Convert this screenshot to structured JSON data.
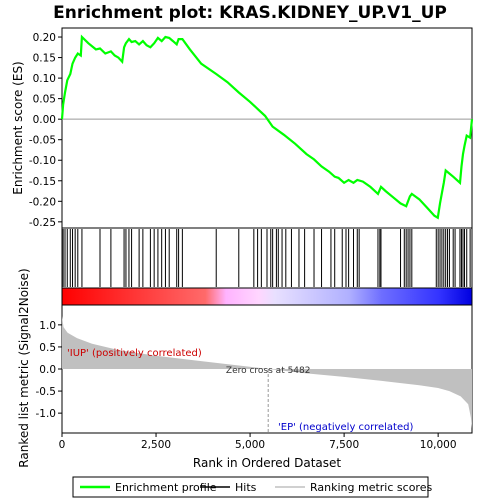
{
  "chart_data": {
    "type": "line",
    "title": "Enrichment plot: KRAS.KIDNEY_UP.V1_UP",
    "xlabel": "Rank in Ordered Dataset",
    "x_ticks": [
      0,
      2500,
      5000,
      7500,
      10000
    ],
    "x_tick_labels": [
      "0",
      "2,500",
      "5,000",
      "7,500",
      "10,000"
    ],
    "xlim": [
      0,
      10900
    ],
    "es_panel": {
      "ylabel": "Enrichment score (ES)",
      "ylim": [
        -0.265,
        0.222
      ],
      "y_ticks": [
        0.2,
        0.15,
        0.1,
        0.05,
        0.0,
        -0.05,
        -0.1,
        -0.15,
        -0.2,
        -0.25
      ],
      "y_tick_labels": [
        "0.20",
        "0.15",
        "0.10",
        "0.05",
        "0.00",
        "-0.05",
        "-0.10",
        "-0.15",
        "-0.20",
        "-0.25"
      ],
      "series": {
        "name": "Enrichment profile",
        "color": "#00ff00",
        "points": [
          [
            0,
            0.0
          ],
          [
            30,
            0.035
          ],
          [
            80,
            0.065
          ],
          [
            140,
            0.095
          ],
          [
            220,
            0.11
          ],
          [
            280,
            0.135
          ],
          [
            350,
            0.15
          ],
          [
            420,
            0.16
          ],
          [
            500,
            0.155
          ],
          [
            530,
            0.2
          ],
          [
            700,
            0.185
          ],
          [
            900,
            0.17
          ],
          [
            1010,
            0.172
          ],
          [
            1150,
            0.16
          ],
          [
            1300,
            0.165
          ],
          [
            1400,
            0.155
          ],
          [
            1500,
            0.15
          ],
          [
            1600,
            0.14
          ],
          [
            1650,
            0.175
          ],
          [
            1700,
            0.185
          ],
          [
            1780,
            0.195
          ],
          [
            1850,
            0.188
          ],
          [
            1950,
            0.19
          ],
          [
            2050,
            0.182
          ],
          [
            2150,
            0.19
          ],
          [
            2250,
            0.18
          ],
          [
            2350,
            0.175
          ],
          [
            2450,
            0.185
          ],
          [
            2550,
            0.198
          ],
          [
            2650,
            0.19
          ],
          [
            2750,
            0.2
          ],
          [
            2850,
            0.198
          ],
          [
            2950,
            0.19
          ],
          [
            3050,
            0.182
          ],
          [
            3100,
            0.195
          ],
          [
            3200,
            0.195
          ],
          [
            3400,
            0.17
          ],
          [
            3700,
            0.135
          ],
          [
            4100,
            0.11
          ],
          [
            4400,
            0.09
          ],
          [
            4700,
            0.065
          ],
          [
            5000,
            0.042
          ],
          [
            5200,
            0.025
          ],
          [
            5400,
            0.008
          ],
          [
            5600,
            -0.018
          ],
          [
            5900,
            -0.038
          ],
          [
            6200,
            -0.06
          ],
          [
            6500,
            -0.085
          ],
          [
            6700,
            -0.098
          ],
          [
            6900,
            -0.115
          ],
          [
            7100,
            -0.128
          ],
          [
            7250,
            -0.14
          ],
          [
            7350,
            -0.143
          ],
          [
            7500,
            -0.155
          ],
          [
            7620,
            -0.148
          ],
          [
            7750,
            -0.155
          ],
          [
            7850,
            -0.148
          ],
          [
            8000,
            -0.152
          ],
          [
            8200,
            -0.165
          ],
          [
            8400,
            -0.182
          ],
          [
            8480,
            -0.165
          ],
          [
            8600,
            -0.175
          ],
          [
            8800,
            -0.19
          ],
          [
            9000,
            -0.205
          ],
          [
            9150,
            -0.212
          ],
          [
            9250,
            -0.188
          ],
          [
            9300,
            -0.182
          ],
          [
            9500,
            -0.195
          ],
          [
            9700,
            -0.215
          ],
          [
            9900,
            -0.235
          ],
          [
            9990,
            -0.24
          ],
          [
            10050,
            -0.205
          ],
          [
            10100,
            -0.18
          ],
          [
            10150,
            -0.155
          ],
          [
            10200,
            -0.125
          ],
          [
            10400,
            -0.14
          ],
          [
            10580,
            -0.155
          ],
          [
            10620,
            -0.115
          ],
          [
            10660,
            -0.085
          ],
          [
            10700,
            -0.065
          ],
          [
            10760,
            -0.04
          ],
          [
            10850,
            -0.045
          ],
          [
            10900,
            0.0
          ]
        ]
      }
    },
    "hits": {
      "name": "Hits",
      "color": "#000000",
      "positions": [
        30,
        80,
        140,
        220,
        280,
        350,
        420,
        530,
        1010,
        1300,
        1650,
        1700,
        1780,
        1850,
        2050,
        2150,
        2350,
        2450,
        2550,
        2650,
        2750,
        2850,
        3050,
        3100,
        3200,
        4100,
        4700,
        5100,
        5200,
        5300,
        5450,
        5550,
        5600,
        5700,
        5750,
        5850,
        5950,
        6100,
        6300,
        6450,
        6700,
        6900,
        7150,
        7250,
        7450,
        7550,
        7620,
        7750,
        7850,
        7900,
        8400,
        8450,
        8480,
        9000,
        9100,
        9150,
        9200,
        9250,
        9300,
        9950,
        10000,
        10050,
        10100,
        10150,
        10200,
        10250,
        10300,
        10400,
        10450,
        10580,
        10620,
        10660,
        10700,
        10760,
        10850
      ]
    },
    "ranking_panel": {
      "ylabel": "Ranked list metric (Signal2Noise)",
      "ylim": [
        -1.45,
        1.45
      ],
      "y_ticks": [
        1.0,
        0.5,
        0.0,
        -0.5,
        -1.0
      ],
      "y_tick_labels": [
        "1.0",
        "0.5",
        "0.0",
        "-0.5",
        "-1.0"
      ],
      "series": {
        "name": "Ranking metric scores",
        "color": "#c0c0c0",
        "points": [
          [
            0,
            1.2
          ],
          [
            40,
            0.95
          ],
          [
            150,
            0.82
          ],
          [
            400,
            0.7
          ],
          [
            800,
            0.57
          ],
          [
            1500,
            0.43
          ],
          [
            2500,
            0.3
          ],
          [
            3500,
            0.2
          ],
          [
            4500,
            0.1
          ],
          [
            5482,
            0.0
          ],
          [
            6500,
            -0.1
          ],
          [
            7500,
            -0.18
          ],
          [
            8500,
            -0.27
          ],
          [
            9500,
            -0.37
          ],
          [
            10000,
            -0.43
          ],
          [
            10300,
            -0.5
          ],
          [
            10600,
            -0.62
          ],
          [
            10800,
            -0.8
          ],
          [
            10870,
            -1.1
          ],
          [
            10900,
            -1.35
          ]
        ]
      },
      "zero_cross_label": "Zero cross at 5482",
      "zero_cross_rank": 5482,
      "pos_label": "'IUP' (positively correlated)",
      "neg_label": "'EP' (negatively correlated)"
    },
    "color_bar": {
      "stops": [
        [
          "0",
          "#ff0000"
        ],
        [
          "0.35",
          "#ff6a6a"
        ],
        [
          "0.40",
          "#ffb3ff"
        ],
        [
          "0.48",
          "#ffd6ff"
        ],
        [
          "0.52",
          "#e8e0ff"
        ],
        [
          "0.70",
          "#b0b0ff"
        ],
        [
          "0.78",
          "#6e6eff"
        ],
        [
          "0.92",
          "#3333ff"
        ],
        [
          "1",
          "#0000e0"
        ]
      ]
    },
    "legend": [
      {
        "label": "Enrichment profile",
        "color": "#00ff00"
      },
      {
        "label": "Hits",
        "color": "#000000"
      },
      {
        "label": "Ranking metric scores",
        "color": "#c0c0c0"
      }
    ]
  }
}
